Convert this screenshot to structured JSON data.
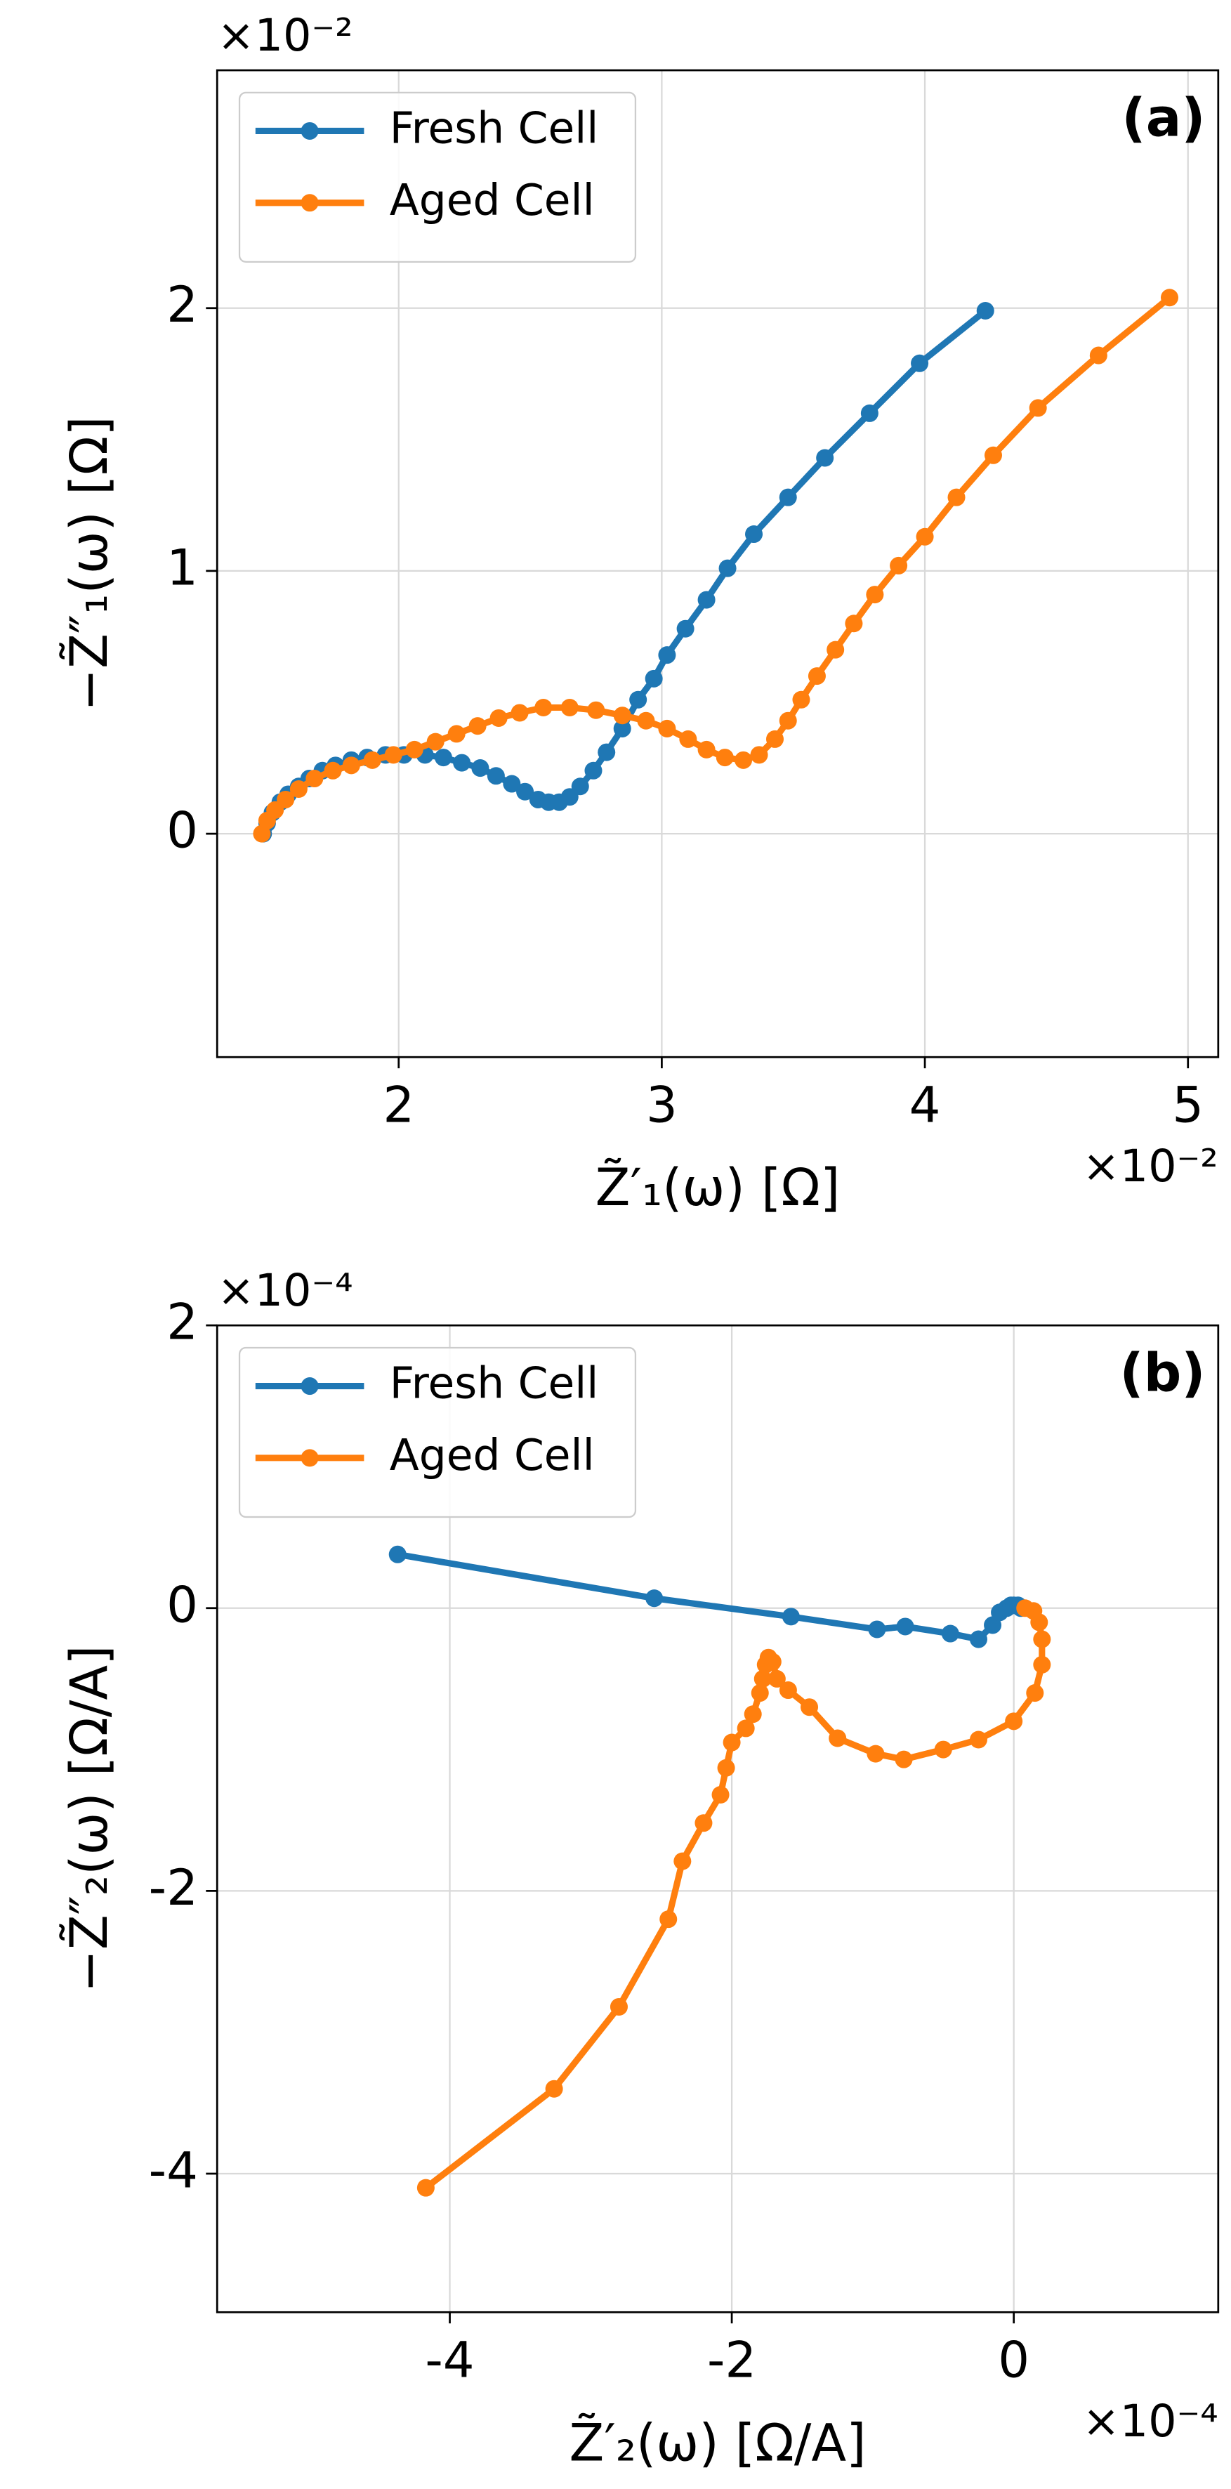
{
  "chart_data": [
    {
      "type": "line",
      "title": "(a)",
      "x_label": "Z̃′₁(ω) [Ω]",
      "y_label": "−Z̃″₁(ω) [Ω]",
      "x_offset_label": "×10⁻²",
      "y_offset_label": "×10⁻²",
      "xlim": [
        1.31,
        5.115
      ],
      "ylim": [
        -0.85,
        2.905
      ],
      "xticks": [
        2,
        3,
        4,
        5
      ],
      "yticks": [
        0,
        1,
        2
      ],
      "grid": true,
      "legend": "upper left",
      "series": [
        {
          "name": "Fresh Cell",
          "color": "#1f77b4",
          "x": [
            1.485,
            1.5,
            1.52,
            1.55,
            1.58,
            1.62,
            1.66,
            1.71,
            1.76,
            1.82,
            1.88,
            1.95,
            2.02,
            2.1,
            2.17,
            2.24,
            2.31,
            2.37,
            2.43,
            2.48,
            2.53,
            2.57,
            2.61,
            2.65,
            2.69,
            2.74,
            2.79,
            2.85,
            2.91,
            2.97,
            3.02,
            3.09,
            3.17,
            3.25,
            3.35,
            3.48,
            3.62,
            3.79,
            3.98,
            4.23
          ],
          "values": [
            0,
            0.04,
            0.08,
            0.12,
            0.15,
            0.18,
            0.21,
            0.24,
            0.26,
            0.28,
            0.29,
            0.3,
            0.3,
            0.3,
            0.29,
            0.27,
            0.25,
            0.22,
            0.19,
            0.16,
            0.13,
            0.12,
            0.12,
            0.14,
            0.18,
            0.24,
            0.31,
            0.4,
            0.51,
            0.59,
            0.68,
            0.78,
            0.89,
            1.01,
            1.14,
            1.28,
            1.43,
            1.6,
            1.79,
            1.99
          ]
        },
        {
          "name": "Aged Cell",
          "color": "#ff7f0e",
          "x": [
            1.48,
            1.5,
            1.53,
            1.57,
            1.62,
            1.68,
            1.75,
            1.82,
            1.9,
            1.98,
            2.06,
            2.14,
            2.22,
            2.3,
            2.38,
            2.46,
            2.55,
            2.65,
            2.75,
            2.85,
            2.94,
            3.02,
            3.1,
            3.17,
            3.24,
            3.31,
            3.37,
            3.43,
            3.48,
            3.53,
            3.59,
            3.66,
            3.73,
            3.81,
            3.9,
            4.0,
            4.12,
            4.26,
            4.43,
            4.66,
            4.93
          ],
          "values": [
            0,
            0.05,
            0.09,
            0.13,
            0.17,
            0.21,
            0.24,
            0.26,
            0.28,
            0.3,
            0.32,
            0.35,
            0.38,
            0.41,
            0.44,
            0.46,
            0.48,
            0.48,
            0.47,
            0.45,
            0.43,
            0.4,
            0.36,
            0.32,
            0.29,
            0.28,
            0.3,
            0.36,
            0.43,
            0.51,
            0.6,
            0.7,
            0.8,
            0.91,
            1.02,
            1.13,
            1.28,
            1.44,
            1.62,
            1.82,
            2.04
          ]
        }
      ]
    },
    {
      "type": "line",
      "title": "(b)",
      "x_label": "Z̃′₂(ω) [Ω/A]",
      "y_label": "−Z̃″₂(ω) [Ω/A]",
      "x_offset_label": "×10⁻⁴",
      "y_offset_label": "×10⁻⁴",
      "xlim": [
        -5.65,
        1.45
      ],
      "ylim": [
        -4.98,
        2
      ],
      "xticks": [
        -4,
        -2,
        0
      ],
      "yticks": [
        -4,
        -2,
        0,
        2
      ],
      "grid": true,
      "legend": "upper left",
      "series": [
        {
          "name": "Fresh Cell",
          "color": "#1f77b4",
          "x": [
            -4.37,
            -2.55,
            -1.58,
            -0.97,
            -0.77,
            -0.45,
            -0.25,
            -0.15,
            -0.1,
            -0.05,
            -0.02,
            0,
            0.03,
            0.05
          ],
          "values": [
            0.38,
            0.07,
            -0.06,
            -0.15,
            -0.13,
            -0.18,
            -0.22,
            -0.12,
            -0.03,
            0,
            0.02,
            0.02,
            0.02,
            0
          ]
        },
        {
          "name": "Aged Cell",
          "color": "#ff7f0e",
          "x": [
            -4.17,
            -3.26,
            -2.8,
            -2.45,
            -2.35,
            -2.2,
            -2.08,
            -2.04,
            -2,
            -1.9,
            -1.85,
            -1.8,
            -1.78,
            -1.76,
            -1.74,
            -1.71,
            -1.68,
            -1.6,
            -1.45,
            -1.25,
            -0.98,
            -0.78,
            -0.5,
            -0.25,
            0,
            0.15,
            0.2,
            0.2,
            0.18,
            0.14,
            0.08
          ],
          "values": [
            -4.1,
            -3.4,
            -2.82,
            -2.2,
            -1.79,
            -1.52,
            -1.32,
            -1.13,
            -0.95,
            -0.85,
            -0.75,
            -0.6,
            -0.5,
            -0.4,
            -0.35,
            -0.38,
            -0.5,
            -0.58,
            -0.7,
            -0.92,
            -1.03,
            -1.07,
            -1,
            -0.93,
            -0.8,
            -0.6,
            -0.4,
            -0.22,
            -0.1,
            -0.02,
            0
          ]
        }
      ]
    }
  ]
}
